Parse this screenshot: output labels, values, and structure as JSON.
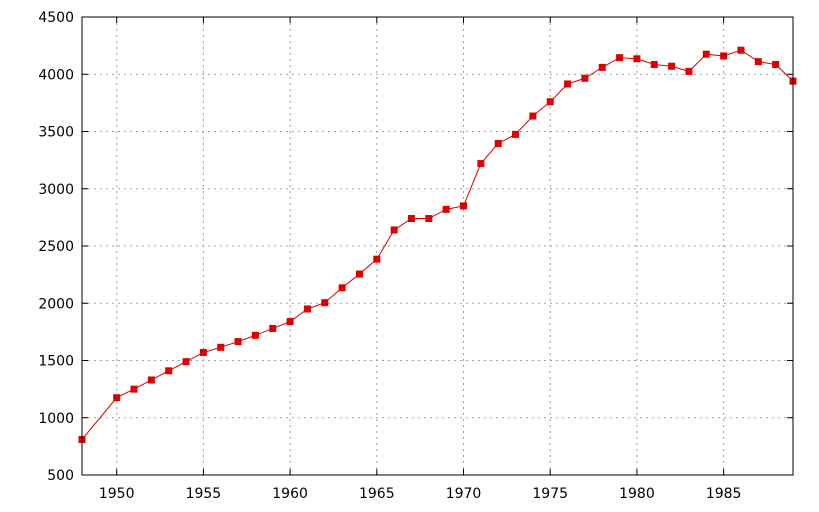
{
  "chart_data": {
    "type": "line",
    "title": "",
    "xlabel": "",
    "ylabel": "",
    "xlim": [
      1948,
      1989
    ],
    "ylim": [
      500,
      4500
    ],
    "grid": true,
    "legend": "none",
    "x_ticks": [
      "1950",
      "1955",
      "1960",
      "1965",
      "1970",
      "1975",
      "1980",
      "1985"
    ],
    "y_ticks": [
      "500",
      "1000",
      "1500",
      "2000",
      "2500",
      "3000",
      "3500",
      "4000",
      "4500"
    ],
    "colors": {
      "series": "#dd0000",
      "grid": "#a0a0a0",
      "axis": "#000000"
    },
    "series": [
      {
        "x": [
          1948,
          1950,
          1951,
          1952,
          1953,
          1954,
          1955,
          1956,
          1957,
          1958,
          1959,
          1960,
          1961,
          1962,
          1963,
          1964,
          1965,
          1966,
          1967,
          1968,
          1969,
          1970,
          1971,
          1972,
          1973,
          1974,
          1975,
          1976,
          1977,
          1978,
          1979,
          1980,
          1981,
          1982,
          1983,
          1984,
          1985,
          1986,
          1987,
          1988,
          1989
        ],
        "values": [
          810,
          1175,
          1250,
          1330,
          1410,
          1490,
          1570,
          1615,
          1665,
          1720,
          1780,
          1840,
          1950,
          2005,
          2135,
          2255,
          2385,
          2640,
          2740,
          2740,
          2820,
          2850,
          3220,
          3395,
          3475,
          3635,
          3760,
          3915,
          3965,
          4060,
          4145,
          4135,
          4085,
          4070,
          4025,
          4175,
          4160,
          4210,
          4110,
          4085,
          3940
        ]
      }
    ]
  }
}
